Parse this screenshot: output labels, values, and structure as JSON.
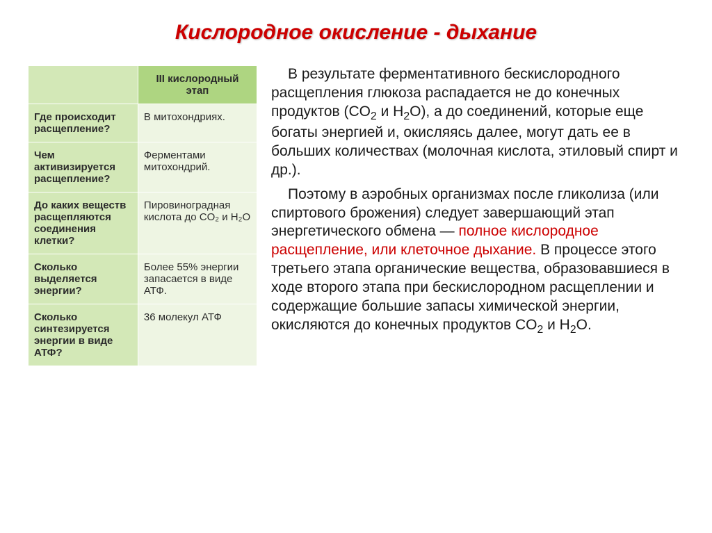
{
  "title": "Кислородное окисление - дыхание",
  "table": {
    "header_left": "",
    "header_right": "III кислородный этап",
    "rows": [
      {
        "q": "Где происходит расщепление?",
        "a": "В митохондриях."
      },
      {
        "q": "Чем активизируется расщепление?",
        "a": "Ферментами митохондрий."
      },
      {
        "q": "До каких веществ расщепляются соединения клетки?",
        "a": "Пировиноградная кислота до CO₂ и H₂O"
      },
      {
        "q": "Сколько выделяется энергии?",
        "a": "Более 55% энергии запасается в виде АТФ."
      },
      {
        "q": "Сколько синтезируется энергии в виде АТФ?",
        "a": "36 молекул АТФ"
      }
    ]
  },
  "paragraphs": {
    "p1_a": "В результате ферментативного бескислородного расщепления глюкоза распадается не до конечных продуктов (CO",
    "p1_b": " и H",
    "p1_c": "O), а до соединений, которые еще богаты энергией и, окисляясь далее, могут дать ее в больших количествах (молочная кислота, этиловый спирт и др.).",
    "p2_a": "Поэтому в аэробных организмах после гликолиза (или спиртового брожения) следует завершающий этап энергетического обмена — ",
    "p2_hl": "полное кислородное расщепление, или клеточное дыхание.",
    "p2_b": " В процессе этого третьего этапа органические вещества, образовавшиеся в ходе второго этапа при бескислородном расщеплении и содержащие большие запасы химической энергии, окисляются до конечных продуктов CO",
    "p2_c": " и H",
    "p2_d": "O."
  },
  "sub2": "2"
}
